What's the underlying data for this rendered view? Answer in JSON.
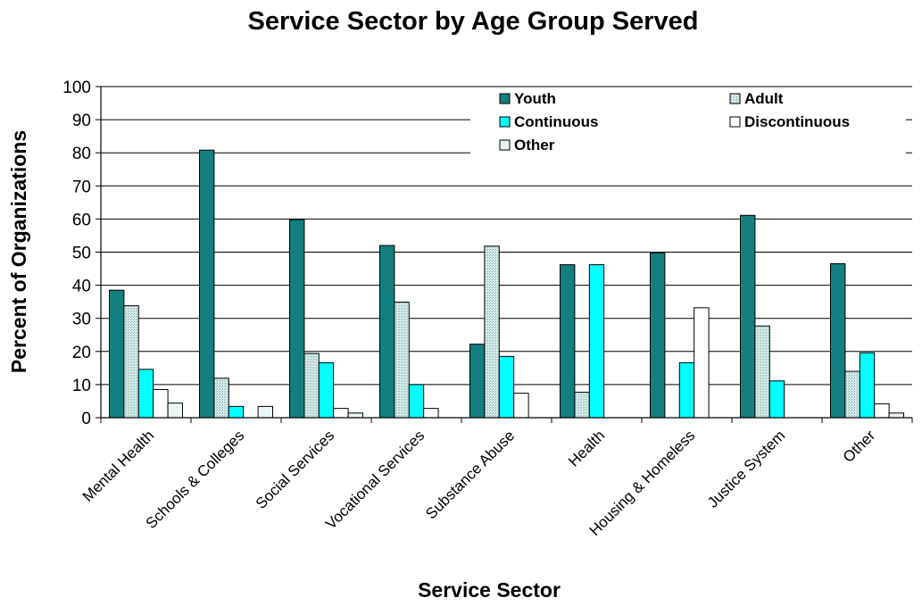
{
  "chart_data": {
    "type": "bar",
    "title": "Service Sector by Age Group Served",
    "xlabel": "Service Sector",
    "ylabel": "Percent of Organizations",
    "ylim": [
      0,
      100
    ],
    "yticks": [
      "0",
      "10",
      "20",
      "30",
      "40",
      "50",
      "60",
      "70",
      "80",
      "90",
      "100"
    ],
    "grid": "horizontal",
    "legend_position": "top-right",
    "categories": [
      "Mental Health",
      "Schools & Colleges",
      "Social Services",
      "Vocational Services",
      "Substance Abuse",
      "Health",
      "Housing & Homeless",
      "Justice System",
      "Other"
    ],
    "series": [
      {
        "name": "Youth",
        "color": "#137f7f",
        "pattern": "solid",
        "values": [
          38.5,
          80.8,
          59.8,
          52.0,
          22.2,
          46.2,
          49.8,
          61.1,
          46.5
        ]
      },
      {
        "name": "Adult",
        "color": "#c9e3e3",
        "pattern": "dots",
        "values": [
          33.8,
          11.9,
          19.4,
          34.9,
          51.8,
          7.7,
          0,
          27.7,
          14.0
        ]
      },
      {
        "name": "Continuous",
        "color": "#00ffff",
        "pattern": "solid",
        "values": [
          14.6,
          3.4,
          16.6,
          10.0,
          18.5,
          46.2,
          16.6,
          11.1,
          19.6
        ]
      },
      {
        "name": "Discontinuous",
        "color": "#ffffff",
        "pattern": "solid",
        "values": [
          8.5,
          0,
          2.8,
          2.8,
          7.4,
          0,
          33.2,
          0,
          4.2
        ]
      },
      {
        "name": "Other",
        "color": "#eaf6f6",
        "pattern": "solid",
        "values": [
          4.4,
          3.4,
          1.4,
          0,
          0,
          0,
          0,
          0,
          1.4
        ]
      }
    ]
  }
}
